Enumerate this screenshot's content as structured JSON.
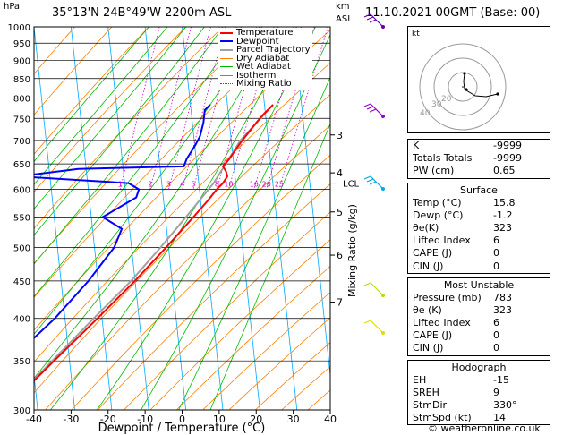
{
  "header": {
    "pressure_unit": "hPa",
    "location": "35°13'N  24B°49'W  2200m  ASL",
    "height_unit": "km",
    "height_ref": "ASL",
    "datetime": "11.10.2021  00GMT  (Base: 00)"
  },
  "chart_data": {
    "type": "skew-t",
    "xlabel": "Dewpoint / Temperature (°C)",
    "right_label": "Mixing Ratio (g/kg)",
    "xlim": [
      -40,
      40
    ],
    "x_ticks": [
      -40,
      -30,
      -20,
      -10,
      0,
      10,
      20,
      30,
      40
    ],
    "pressure_levels": [
      300,
      350,
      400,
      450,
      500,
      550,
      600,
      650,
      700,
      750,
      800,
      850,
      900,
      950,
      1000
    ],
    "km_ticks": [
      {
        "label": "7",
        "p": 421
      },
      {
        "label": "6",
        "p": 488
      },
      {
        "label": "5",
        "p": 559
      },
      {
        "label": "4",
        "p": 632
      },
      {
        "label": "3",
        "p": 712
      }
    ],
    "lcl_label": "LCL",
    "lcl_p": 612,
    "mixing_ratio_labels": [
      "1",
      "2",
      "3",
      "4",
      "5",
      "8",
      "10",
      "16",
      "20",
      "25"
    ],
    "legend": [
      "Temperature",
      "Dewpoint",
      "Parcel Trajectory",
      "Dry Adiabat",
      "Wet Adiabat",
      "Isotherm",
      "Mixing Ratio"
    ],
    "legend_colors": [
      "#ff0000",
      "#0000ff",
      "#a0a0a0",
      "#ff8000",
      "#00bb00",
      "#00aaff",
      "#cc00cc"
    ],
    "temperature": [
      {
        "p": 783,
        "t": 15.8
      },
      {
        "p": 760,
        "t": 13.5
      },
      {
        "p": 740,
        "t": 11.8
      },
      {
        "p": 720,
        "t": 10.2
      },
      {
        "p": 700,
        "t": 8.5
      },
      {
        "p": 680,
        "t": 7.0
      },
      {
        "p": 660,
        "t": 5.5
      },
      {
        "p": 645,
        "t": 4.0
      },
      {
        "p": 635,
        "t": 5.0
      },
      {
        "p": 625,
        "t": 5.5
      },
      {
        "p": 612,
        "t": 4.5
      },
      {
        "p": 600,
        "t": 3.0
      },
      {
        "p": 580,
        "t": 1.0
      },
      {
        "p": 550,
        "t": -2.5
      },
      {
        "p": 500,
        "t": -9.0
      },
      {
        "p": 450,
        "t": -16.5
      },
      {
        "p": 400,
        "t": -25.5
      },
      {
        "p": 350,
        "t": -36.0
      },
      {
        "p": 300,
        "t": -48.0
      }
    ],
    "dewpoint": [
      {
        "p": 783,
        "t": -1.2
      },
      {
        "p": 770,
        "t": -2.5
      },
      {
        "p": 740,
        "t": -2.5
      },
      {
        "p": 710,
        "t": -3.0
      },
      {
        "p": 690,
        "t": -4.0
      },
      {
        "p": 660,
        "t": -6.0
      },
      {
        "p": 645,
        "t": -6.5
      },
      {
        "p": 640,
        "t": -35.0
      },
      {
        "p": 625,
        "t": -51.0
      },
      {
        "p": 612,
        "t": -21.0
      },
      {
        "p": 600,
        "t": -18.0
      },
      {
        "p": 585,
        "t": -18.5
      },
      {
        "p": 550,
        "t": -27.0
      },
      {
        "p": 530,
        "t": -21.5
      },
      {
        "p": 500,
        "t": -23.0
      },
      {
        "p": 450,
        "t": -29.0
      },
      {
        "p": 400,
        "t": -37.0
      },
      {
        "p": 350,
        "t": -48.0
      },
      {
        "p": 300,
        "t": -61.0
      }
    ],
    "parcel": [
      {
        "p": 783,
        "t": 15.8
      },
      {
        "p": 700,
        "t": 8.0
      },
      {
        "p": 612,
        "t": 2.0
      },
      {
        "p": 550,
        "t": -4.5
      },
      {
        "p": 500,
        "t": -10.5
      },
      {
        "p": 450,
        "t": -17.5
      },
      {
        "p": 400,
        "t": -26.5
      },
      {
        "p": 350,
        "t": -36.5
      },
      {
        "p": 300,
        "t": -48.0
      }
    ]
  },
  "hodograph": {
    "unit": "kt",
    "ring_labels": [
      "40",
      "30",
      "20"
    ]
  },
  "indices": [
    {
      "label": "K",
      "value": "-9999"
    },
    {
      "label": "Totals Totals",
      "value": "-9999"
    },
    {
      "label": "PW (cm)",
      "value": "0.65"
    }
  ],
  "surface": {
    "title": "Surface",
    "rows": [
      {
        "label": "Temp (°C)",
        "value": "15.8"
      },
      {
        "label": "Dewp (°C)",
        "value": "-1.2"
      },
      {
        "label": "θe(K)",
        "value": "323"
      },
      {
        "label": "Lifted Index",
        "value": "6"
      },
      {
        "label": "CAPE (J)",
        "value": "0"
      },
      {
        "label": "CIN (J)",
        "value": "0"
      }
    ]
  },
  "most_unstable": {
    "title": "Most Unstable",
    "rows": [
      {
        "label": "Pressure (mb)",
        "value": "783"
      },
      {
        "label": "θe (K)",
        "value": "323"
      },
      {
        "label": "Lifted Index",
        "value": "6"
      },
      {
        "label": "CAPE (J)",
        "value": "0"
      },
      {
        "label": "CIN (J)",
        "value": "0"
      }
    ]
  },
  "hodograph_box": {
    "title": "Hodograph",
    "rows": [
      {
        "label": "EH",
        "value": "-15"
      },
      {
        "label": "SREH",
        "value": "9"
      },
      {
        "label": "StmDir",
        "value": "330°"
      },
      {
        "label": "StmSpd (kt)",
        "value": "14"
      }
    ]
  },
  "footer": {
    "copyright": "© weatheronline.co.uk"
  }
}
